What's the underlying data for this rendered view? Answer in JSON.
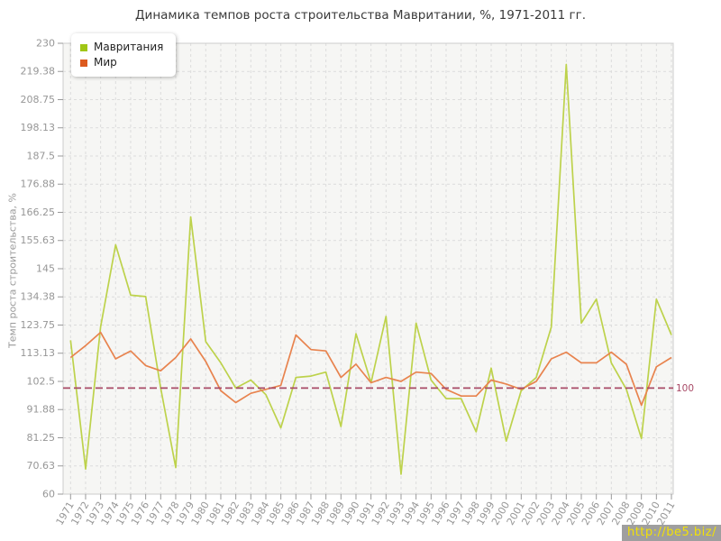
{
  "watermark": {
    "text": "http://be5.biz/",
    "bg_color": "#9f9f9f",
    "text_color": "#f2e106"
  },
  "chart_data": {
    "type": "line",
    "title": "Динамика темпов роста строительства Мавритании, %, 1971-2011 гг.",
    "ylabel": "Темп роста строительства, %",
    "xlabel": "",
    "ylim": [
      60,
      230
    ],
    "yticks": [
      "60",
      "70.63",
      "81.25",
      "91.88",
      "102.5",
      "113.13",
      "123.75",
      "134.38",
      "145",
      "155.63",
      "166.25",
      "176.88",
      "187.5",
      "198.13",
      "208.75",
      "219.38",
      "230"
    ],
    "x": [
      1971,
      1972,
      1973,
      1974,
      1975,
      1976,
      1977,
      1978,
      1979,
      1980,
      1981,
      1982,
      1983,
      1984,
      1985,
      1986,
      1987,
      1988,
      1989,
      1990,
      1991,
      1992,
      1993,
      1994,
      1995,
      1996,
      1997,
      1998,
      1999,
      2000,
      2001,
      2002,
      2003,
      2004,
      2005,
      2006,
      2007,
      2008,
      2009,
      2010,
      2011
    ],
    "series": [
      {
        "name": "Мавритания",
        "color": "#bdd24b",
        "swatch": "#a0c616",
        "values": [
          118,
          69.5,
          123,
          154,
          135,
          134.5,
          100,
          70,
          164.5,
          117.5,
          109.5,
          100,
          103,
          97.5,
          85,
          104,
          104.5,
          106,
          85.5,
          120.5,
          102,
          127,
          67.5,
          124.5,
          103,
          96,
          96,
          83.5,
          107.5,
          80,
          99,
          104,
          123,
          222,
          124.5,
          133.5,
          109.5,
          99.5,
          81,
          133.5,
          120
        ]
      },
      {
        "name": "Мир",
        "color": "#e8834e",
        "swatch": "#dc5a1e",
        "values": [
          111.5,
          116,
          121,
          111,
          114,
          108.5,
          106.5,
          111.5,
          118.5,
          110,
          99,
          94.5,
          98,
          99.5,
          101,
          120,
          114.5,
          114,
          104,
          109,
          102,
          104,
          102.5,
          106,
          105.5,
          99.5,
          97,
          97,
          103,
          101.5,
          99.5,
          102.5,
          111,
          113.5,
          109.5,
          109.5,
          113.5,
          109,
          93.5,
          108,
          111.5
        ]
      }
    ],
    "reference_line": {
      "value": 100,
      "label": "100",
      "color": "#a84a66"
    },
    "legend_position": "top-left",
    "grid": "dashed",
    "plot_bg": "#f6f6f4",
    "grid_color": "#dcdcdc",
    "axis_color": "#cccccc",
    "tick_color": "#999999",
    "tick_label_color": "#979797"
  }
}
